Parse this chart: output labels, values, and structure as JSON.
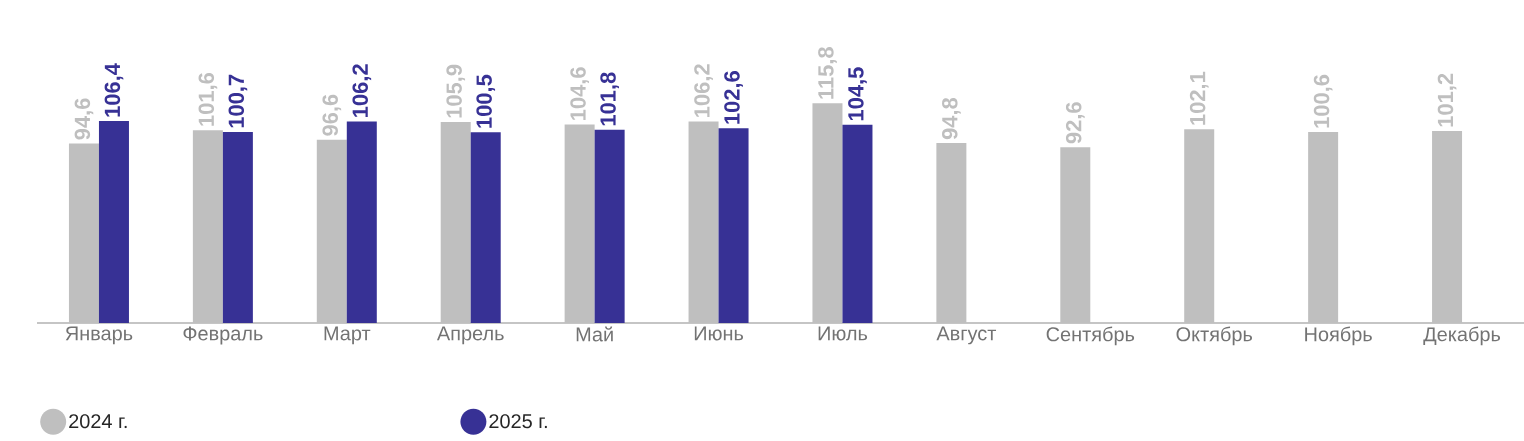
{
  "chart_data": {
    "type": "bar",
    "categories": [
      "Январь",
      "Февраль",
      "Март",
      "Апрель",
      "Май",
      "Июнь",
      "Июль",
      "Август",
      "Сентябрь",
      "Октябрь",
      "Ноябрь",
      "Декабрь"
    ],
    "series": [
      {
        "name": "2024 г.",
        "color": "#bfbfbf",
        "values": [
          94.6,
          101.6,
          96.6,
          105.9,
          104.6,
          106.2,
          115.8,
          94.8,
          92.6,
          102.1,
          100.6,
          101.2
        ],
        "value_labels": [
          "94,6",
          "101,6",
          "96,6",
          "105,9",
          "104,6",
          "106,2",
          "115,8",
          "94,8",
          "92,6",
          "102,1",
          "100,6",
          "101,2"
        ]
      },
      {
        "name": "2025 г.",
        "color": "#373195",
        "values": [
          106.4,
          100.7,
          106.2,
          100.5,
          101.8,
          102.6,
          104.5,
          null,
          null,
          null,
          null,
          null
        ],
        "value_labels": [
          "106,4",
          "100,7",
          "106,2",
          "100,5",
          "101,8",
          "102,6",
          "104,5",
          null,
          null,
          null,
          null,
          null
        ]
      }
    ],
    "legend": "bottom left",
    "marker": "circle"
  }
}
